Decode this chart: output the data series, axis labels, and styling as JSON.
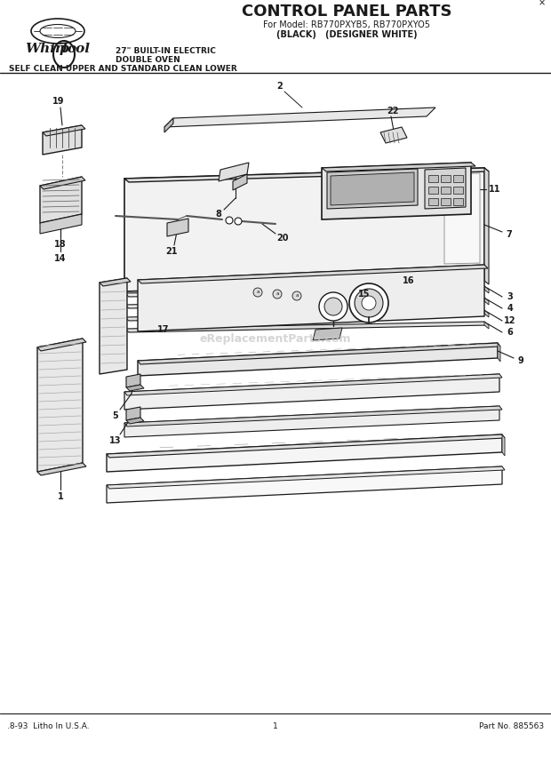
{
  "title_main": "CONTROL PANEL PARTS",
  "title_model": "For Model: RB770PXYB5, RB770PXYO5",
  "title_colors": "(BLACK)   (DESIGNER WHITE)",
  "subtitle1": "27\" BUILT-IN ELECTRIC",
  "subtitle2": "DOUBLE OVEN",
  "subtitle3": "SELF CLEAN UPPER AND STANDARD CLEAN LOWER",
  "footer_left": ".8-93  Litho In U.S.A.",
  "footer_center": "1",
  "footer_right": "Part No. 885563",
  "watermark": "eReplacementParts.com",
  "bg_color": "#ffffff",
  "line_color": "#1a1a1a"
}
